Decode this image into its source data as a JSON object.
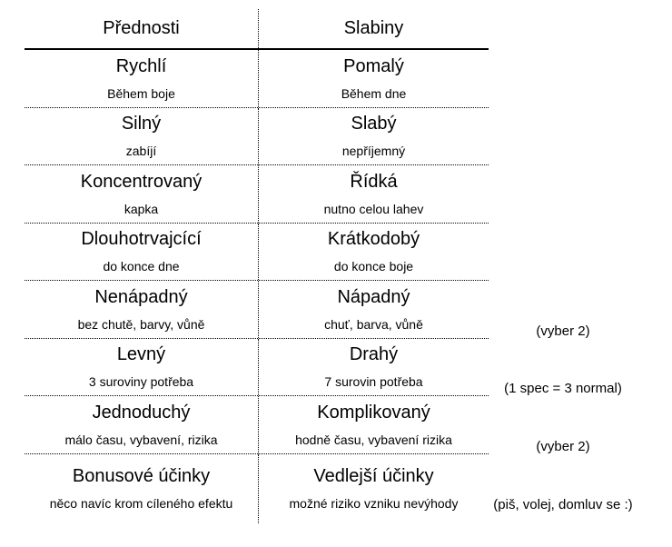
{
  "colors": {
    "text": "#000000",
    "background": "#ffffff",
    "line": "#000000"
  },
  "table": {
    "headers": [
      {
        "label": "Přednosti"
      },
      {
        "label": "Slabiny"
      }
    ],
    "rows": [
      {
        "left": {
          "title": "Rychlí",
          "subtitle": "Během boje"
        },
        "right": {
          "title": "Pomalý",
          "subtitle": "Během dne"
        },
        "note": ""
      },
      {
        "left": {
          "title": "Silný",
          "subtitle": "zabíjí"
        },
        "right": {
          "title": "Slabý",
          "subtitle": "nepříjemný"
        },
        "note": ""
      },
      {
        "left": {
          "title": "Koncentrovaný",
          "subtitle": "kapka"
        },
        "right": {
          "title": "Řídká",
          "subtitle": "nutno celou lahev"
        },
        "note": ""
      },
      {
        "left": {
          "title": "Dlouhotrvajcící",
          "subtitle": "do konce dne"
        },
        "right": {
          "title": "Krátkodobý",
          "subtitle": "do konce boje"
        },
        "note": ""
      },
      {
        "left": {
          "title": "Nenápadný",
          "subtitle": "bez chutě, barvy, vůně"
        },
        "right": {
          "title": "Nápadný",
          "subtitle": "chuť, barva, vůně"
        },
        "note": "(vyber 2)"
      },
      {
        "left": {
          "title": "Levný",
          "subtitle": "3 suroviny potřeba"
        },
        "right": {
          "title": "Drahý",
          "subtitle": "7 surovin potřeba"
        },
        "note": "(1 spec = 3 normal)"
      },
      {
        "left": {
          "title": "Jednoduchý",
          "subtitle": "málo času, vybavení, rizika"
        },
        "right": {
          "title": "Komplikovaný",
          "subtitle": "hodně času, vybavení rizika"
        },
        "note": "(vyber 2)"
      },
      {
        "left": {
          "title": "Bonusové účinky",
          "subtitle": "něco navíc krom cíleného efektu"
        },
        "right": {
          "title": "Vedlejší účinky",
          "subtitle": "možné riziko vzniku nevýhody"
        },
        "note": "(piš, volej, domluv se :)"
      }
    ]
  }
}
